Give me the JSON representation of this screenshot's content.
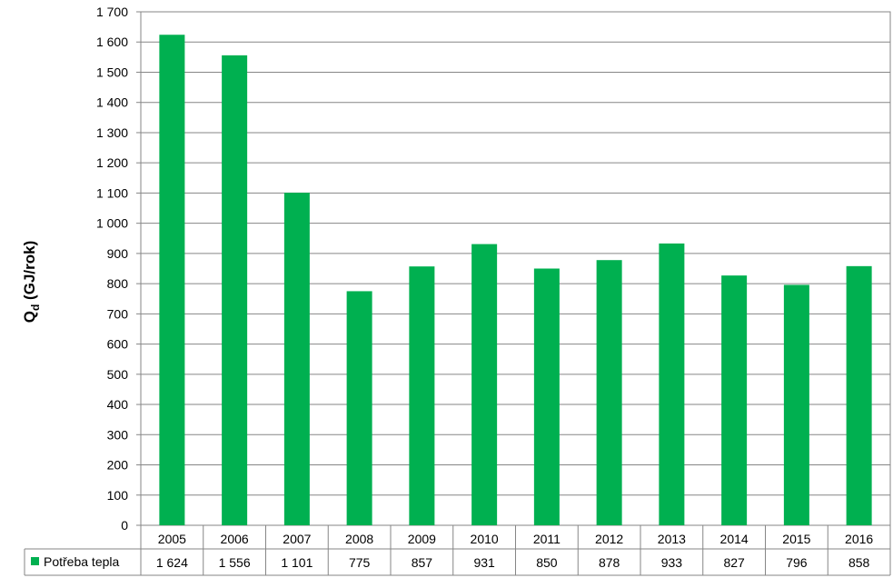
{
  "chart_data": {
    "type": "bar",
    "categories": [
      "2005",
      "2006",
      "2007",
      "2008",
      "2009",
      "2010",
      "2011",
      "2012",
      "2013",
      "2014",
      "2015",
      "2016"
    ],
    "series": [
      {
        "name": "Potřeba tepla",
        "values": [
          1624,
          1556,
          1101,
          775,
          857,
          931,
          850,
          878,
          933,
          827,
          796,
          858
        ],
        "labels": [
          "1 624",
          "1 556",
          "1 101",
          "775",
          "857",
          "931",
          "850",
          "878",
          "933",
          "827",
          "796",
          "858"
        ],
        "color": "#00B050"
      }
    ],
    "ylabel": {
      "main": "Q",
      "sub": "d",
      "rest": "(GJ/rok)"
    },
    "ylim": [
      0,
      1700
    ],
    "yticks": [
      0,
      100,
      200,
      300,
      400,
      500,
      600,
      700,
      800,
      900,
      1000,
      1100,
      1200,
      1300,
      1400,
      1500,
      1600,
      1700
    ],
    "ytick_labels": [
      "0",
      "100",
      "200",
      "300",
      "400",
      "500",
      "600",
      "700",
      "800",
      "900",
      "1 000",
      "1 100",
      "1 200",
      "1 300",
      "1 400",
      "1 500",
      "1 600",
      "1 700"
    ],
    "grid": true,
    "legend": "data-table",
    "data_table": true
  }
}
